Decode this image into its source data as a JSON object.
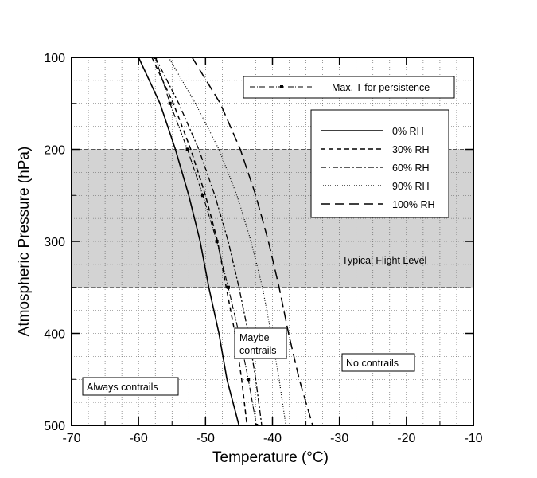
{
  "chart_data": {
    "type": "line",
    "xlabel": "Temperature (°C)",
    "ylabel": "Atmospheric Pressure (hPa)",
    "xlim": [
      -70,
      -10
    ],
    "ylim": [
      100,
      500
    ],
    "y_inverted": true,
    "x_ticks": [
      -70,
      -60,
      -50,
      -40,
      -30,
      -20,
      -10
    ],
    "x_tick_labels": [
      "-70",
      "-60",
      "-50",
      "-40",
      "-30",
      "-20",
      "-10"
    ],
    "y_ticks": [
      100,
      200,
      300,
      400,
      500
    ],
    "y_tick_labels": [
      "100",
      "200",
      "300",
      "400",
      "500"
    ],
    "grid": true,
    "band": {
      "y_from": 200,
      "y_to": 350,
      "label": "Typical Flight Level",
      "color": "#d3d3d3"
    },
    "series": [
      {
        "name": "0% RH",
        "style": "solid",
        "points": [
          [
            -60.0,
            100
          ],
          [
            -56.8,
            150
          ],
          [
            -54.5,
            200
          ],
          [
            -52.5,
            250
          ],
          [
            -50.8,
            300
          ],
          [
            -49.5,
            350
          ],
          [
            -48.0,
            400
          ],
          [
            -46.8,
            450
          ],
          [
            -45.0,
            500
          ]
        ]
      },
      {
        "name": "30% RH",
        "style": "dashed",
        "points": [
          [
            -58.0,
            100
          ],
          [
            -54.8,
            150
          ],
          [
            -52.2,
            200
          ],
          [
            -50.0,
            250
          ],
          [
            -48.2,
            300
          ],
          [
            -46.9,
            350
          ],
          [
            -45.6,
            400
          ],
          [
            -44.6,
            450
          ],
          [
            -43.8,
            500
          ]
        ]
      },
      {
        "name": "60% RH",
        "style": "dashdot",
        "points": [
          [
            -57.5,
            100
          ],
          [
            -54.0,
            150
          ],
          [
            -51.0,
            200
          ],
          [
            -48.6,
            250
          ],
          [
            -46.6,
            300
          ],
          [
            -45.0,
            350
          ],
          [
            -43.6,
            400
          ],
          [
            -42.5,
            450
          ],
          [
            -41.6,
            500
          ]
        ]
      },
      {
        "name": "90% RH",
        "style": "dotted",
        "points": [
          [
            -55.5,
            100
          ],
          [
            -51.5,
            150
          ],
          [
            -48.0,
            200
          ],
          [
            -45.3,
            250
          ],
          [
            -43.2,
            300
          ],
          [
            -41.5,
            350
          ],
          [
            -40.2,
            400
          ],
          [
            -39.0,
            450
          ],
          [
            -38.0,
            500
          ]
        ]
      },
      {
        "name": "100% RH",
        "style": "longdash",
        "points": [
          [
            -52.0,
            100
          ],
          [
            -47.8,
            150
          ],
          [
            -44.8,
            200
          ],
          [
            -42.5,
            250
          ],
          [
            -40.6,
            300
          ],
          [
            -39.0,
            350
          ],
          [
            -37.6,
            400
          ],
          [
            -36.0,
            450
          ],
          [
            -34.0,
            500
          ]
        ]
      },
      {
        "name": "Max. T for persistence",
        "style": "dashdot-marker",
        "points": [
          [
            -57.5,
            100
          ],
          [
            -55.3,
            150
          ],
          [
            -52.7,
            200
          ],
          [
            -50.4,
            250
          ],
          [
            -48.3,
            300
          ],
          [
            -46.6,
            350
          ],
          [
            -45.0,
            400
          ],
          [
            -43.6,
            450
          ],
          [
            -42.4,
            500
          ]
        ]
      }
    ],
    "legend": {
      "placement": "top-right",
      "persistence_label": "Max. T for persistence",
      "entries": [
        "0% RH",
        "30% RH",
        "60% RH",
        "90% RH",
        "100% RH"
      ]
    },
    "annotations": {
      "always": "Always contrails",
      "maybe_line1": "Maybe",
      "maybe_line2": "contrails",
      "none": "No contrails",
      "flight_level": "Typical Flight Level"
    }
  }
}
